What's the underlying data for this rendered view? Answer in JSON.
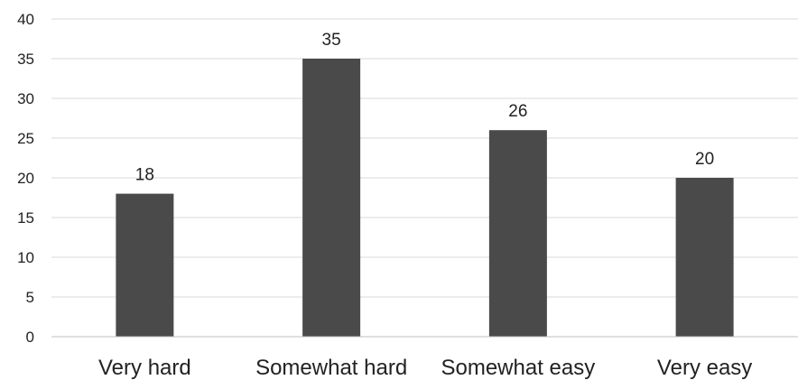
{
  "chart_data": {
    "type": "bar",
    "categories": [
      "Very hard",
      "Somewhat hard",
      "Somewhat easy",
      "Very easy"
    ],
    "values": [
      18,
      35,
      26,
      20
    ],
    "ylim": [
      0,
      40
    ],
    "yticks": [
      0,
      5,
      10,
      15,
      20,
      25,
      30,
      35,
      40
    ],
    "grid": true,
    "data_labels": true,
    "bar_color": "#4a4a4a"
  }
}
